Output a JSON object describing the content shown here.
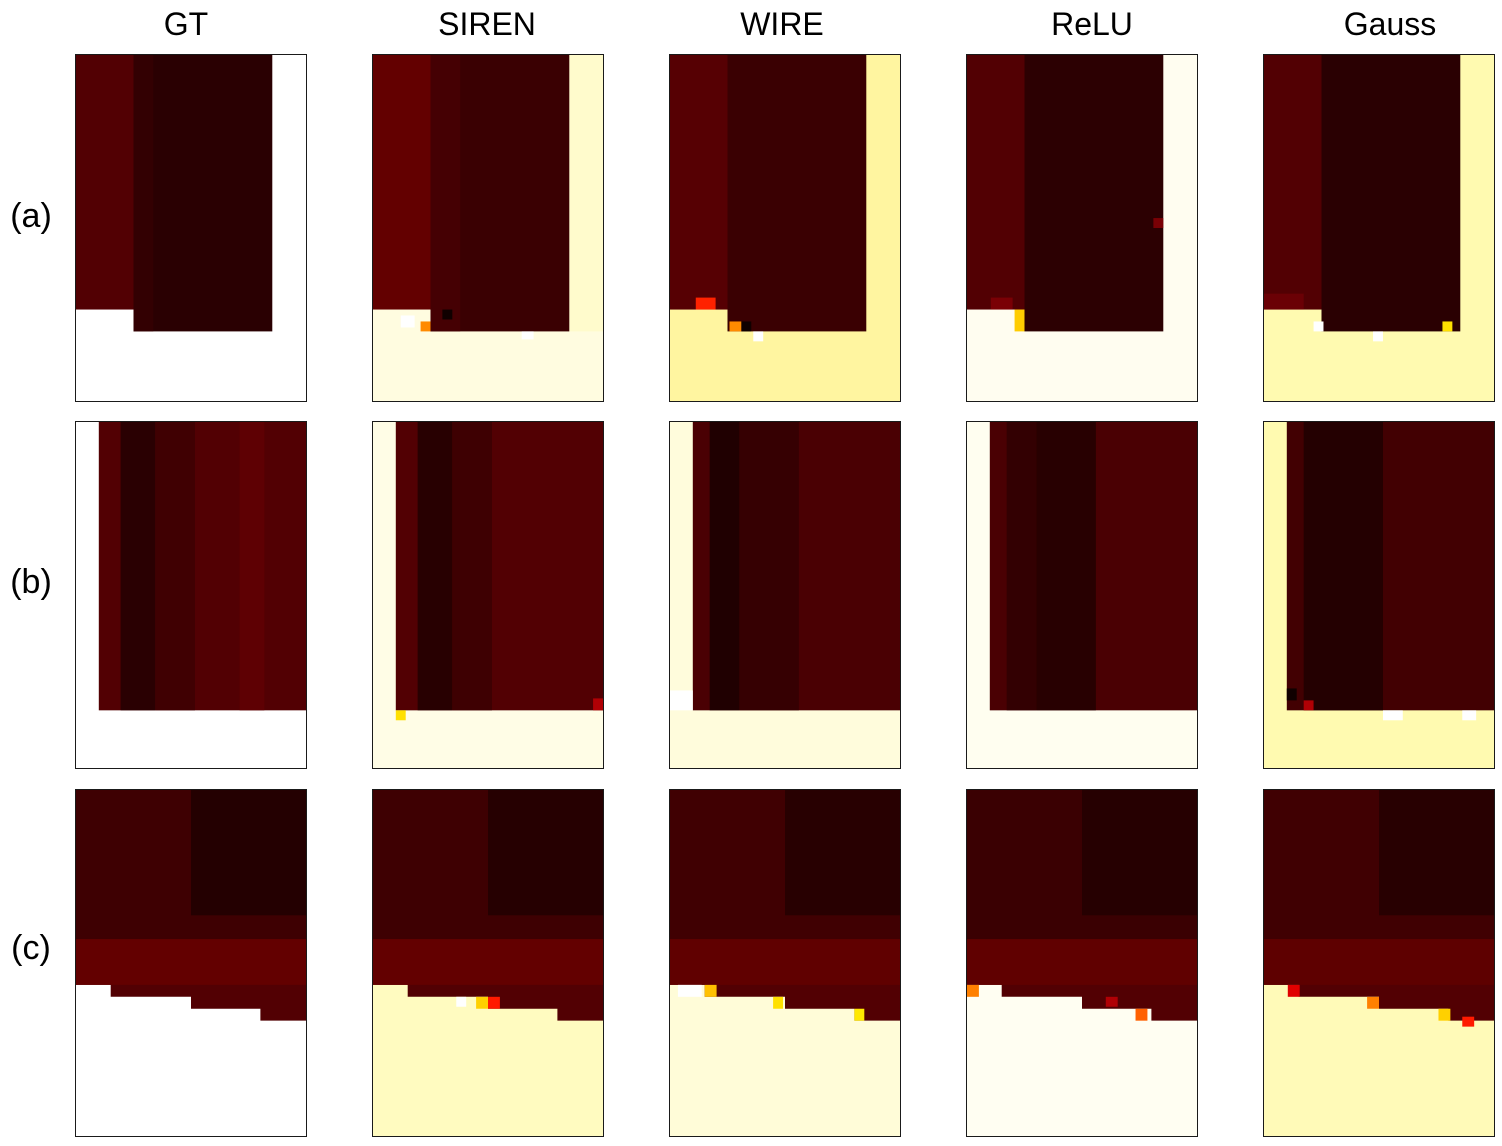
{
  "columns": [
    "GT",
    "SIREN",
    "WIRE",
    "ReLU",
    "Gauss"
  ],
  "rows": [
    "(a)",
    "(b)",
    "(c)"
  ],
  "colors": {
    "dark": "#3a0002",
    "darker": "#280001",
    "mid": "#520003",
    "red": "#630000",
    "pale": "#fffce0",
    "paleYellow": "#fffbb3",
    "white": "#ffffff",
    "hot": "#ff4400",
    "orange": "#ff8a00",
    "yellow": "#ffd000"
  }
}
